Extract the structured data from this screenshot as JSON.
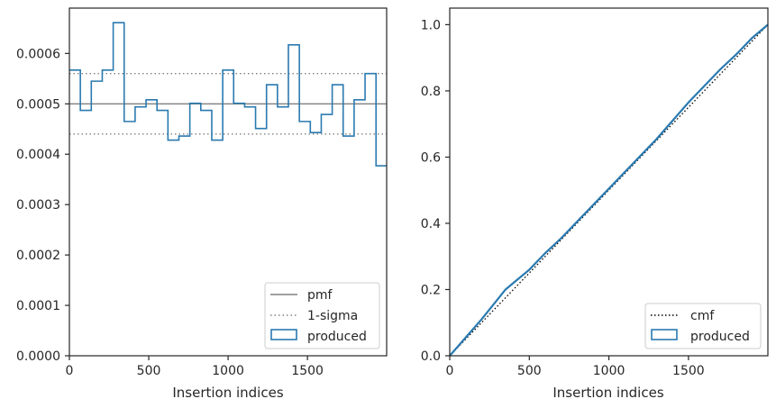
{
  "chart_data": [
    {
      "type": "line",
      "title": "",
      "xlabel": "Insertion indices",
      "ylabel": "",
      "xlim": [
        0,
        1999
      ],
      "ylim": [
        0,
        0.00069
      ],
      "xticks": [
        0,
        500,
        1000,
        1500
      ],
      "xtick_labels": [
        "0",
        "500",
        "1000",
        "1500"
      ],
      "yticks": [
        0,
        0.0001,
        0.0002,
        0.0003,
        0.0004,
        0.0005,
        0.0006
      ],
      "ytick_labels": [
        "0.0000",
        "0.0001",
        "0.0002",
        "0.0003",
        "0.0004",
        "0.0005",
        "0.0006"
      ],
      "grid": false,
      "legend_placement": "lower-right",
      "reference_lines": [
        {
          "name": "pmf",
          "y": 0.0005,
          "style": "solid",
          "color": "#808080"
        },
        {
          "name": "1-sigma",
          "y": 0.00056,
          "style": "dotted",
          "color": "#808080"
        },
        {
          "name": "1-sigma",
          "y": 0.00044,
          "style": "dotted",
          "color": "#808080"
        }
      ],
      "histogram": {
        "name": "produced",
        "style": "step",
        "color": "#2a7ab0",
        "bin_edges": [
          0,
          69,
          138,
          207,
          276,
          345,
          414,
          483,
          552,
          621,
          690,
          759,
          828,
          897,
          966,
          1035,
          1104,
          1173,
          1242,
          1311,
          1380,
          1449,
          1518,
          1587,
          1656,
          1725,
          1794,
          1863,
          1932,
          1999
        ],
        "values": [
          0.000567,
          0.000487,
          0.000545,
          0.000567,
          0.000661,
          0.000465,
          0.000494,
          0.000508,
          0.000487,
          0.000428,
          0.000436,
          0.000501,
          0.000487,
          0.000428,
          0.000567,
          0.000501,
          0.000494,
          0.000451,
          0.000538,
          0.000494,
          0.000617,
          0.000465,
          0.000443,
          0.000479,
          0.000538,
          0.000436,
          0.000508,
          0.00056,
          0.000377
        ]
      },
      "legend_entries": [
        "pmf",
        "1-sigma",
        "produced"
      ]
    },
    {
      "type": "line",
      "title": "",
      "xlabel": "Insertion indices",
      "ylabel": "",
      "xlim": [
        0,
        1999
      ],
      "ylim": [
        0,
        1.05
      ],
      "xticks": [
        0,
        500,
        1000,
        1500
      ],
      "xtick_labels": [
        "0",
        "500",
        "1000",
        "1500"
      ],
      "yticks": [
        0,
        0.2,
        0.4,
        0.6,
        0.8,
        1.0
      ],
      "ytick_labels": [
        "0.0",
        "0.2",
        "0.4",
        "0.6",
        "0.8",
        "1.0"
      ],
      "grid": false,
      "legend_placement": "lower-right",
      "series": [
        {
          "name": "cmf",
          "style": "dotted",
          "color": "#000000",
          "x": [
            0,
            1999
          ],
          "y": [
            0,
            1.0
          ]
        },
        {
          "name": "produced",
          "style": "solid",
          "color": "#2a7ab0",
          "x": [
            0,
            100,
            200,
            300,
            350,
            400,
            500,
            600,
            700,
            800,
            900,
            1000,
            1100,
            1200,
            1300,
            1400,
            1500,
            1600,
            1700,
            1800,
            1900,
            1999
          ],
          "y": [
            0,
            0.055,
            0.11,
            0.17,
            0.2,
            0.22,
            0.26,
            0.31,
            0.355,
            0.405,
            0.455,
            0.505,
            0.555,
            0.605,
            0.655,
            0.71,
            0.765,
            0.815,
            0.865,
            0.91,
            0.96,
            1.0
          ]
        }
      ],
      "legend_entries": [
        "cmf",
        "produced"
      ]
    }
  ]
}
